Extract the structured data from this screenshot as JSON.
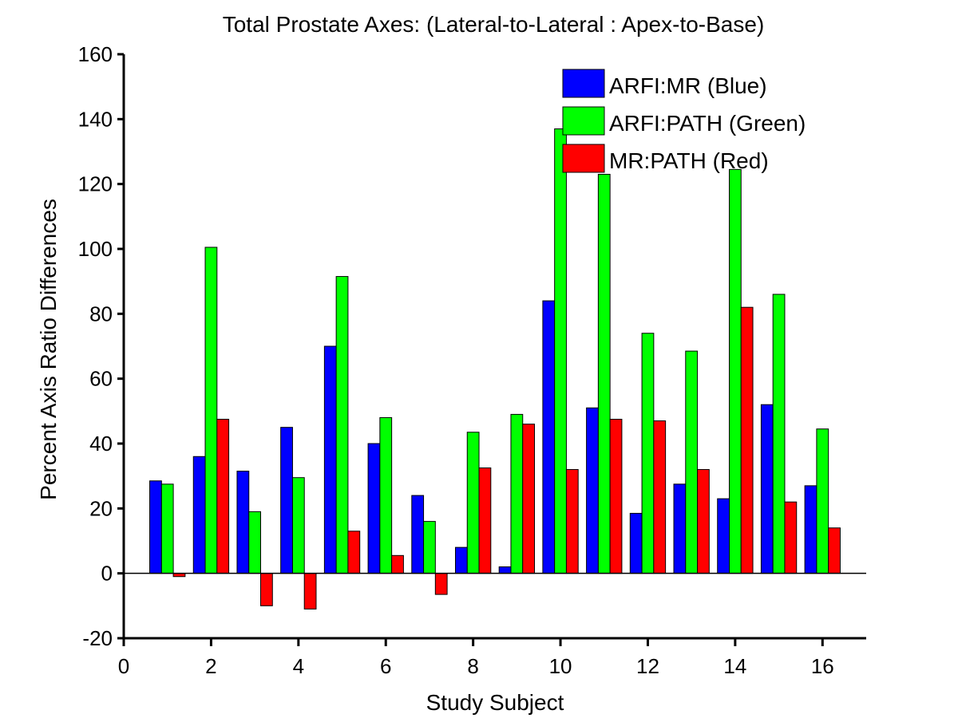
{
  "chart_data": {
    "type": "bar",
    "title": "Total Prostate Axes: (Lateral-to-Lateral : Apex-to-Base)",
    "xlabel": "Study Subject",
    "ylabel": "Percent Axis Ratio Differences",
    "xlim": [
      0,
      17
    ],
    "ylim": [
      -20,
      160
    ],
    "xticks": [
      0,
      2,
      4,
      6,
      8,
      10,
      12,
      14,
      16
    ],
    "yticks": [
      -20,
      0,
      20,
      40,
      60,
      80,
      100,
      120,
      140,
      160
    ],
    "grid": false,
    "legend_position": "top-right",
    "x": [
      1,
      2,
      3,
      4,
      5,
      6,
      7,
      8,
      9,
      10,
      11,
      12,
      13,
      14,
      15,
      16
    ],
    "series": [
      {
        "name": "ARFI:MR (Blue)",
        "color": "#0000ff",
        "values": [
          28.5,
          36,
          31.5,
          45,
          70,
          40,
          24,
          8,
          2,
          84,
          51,
          18.5,
          27.5,
          23,
          52,
          27
        ]
      },
      {
        "name": "ARFI:PATH (Green)",
        "color": "#00ff00",
        "values": [
          27.5,
          100.5,
          19,
          29.5,
          91.5,
          48,
          16,
          43.5,
          49,
          137,
          123,
          74,
          68.5,
          124.5,
          86,
          44.5
        ]
      },
      {
        "name": "MR:PATH (Red)",
        "color": "#ff0000",
        "values": [
          -1,
          47.5,
          -10,
          -11,
          13,
          5.5,
          -6.5,
          32.5,
          46,
          32,
          47.5,
          47,
          32,
          82,
          22,
          14
        ]
      }
    ]
  }
}
